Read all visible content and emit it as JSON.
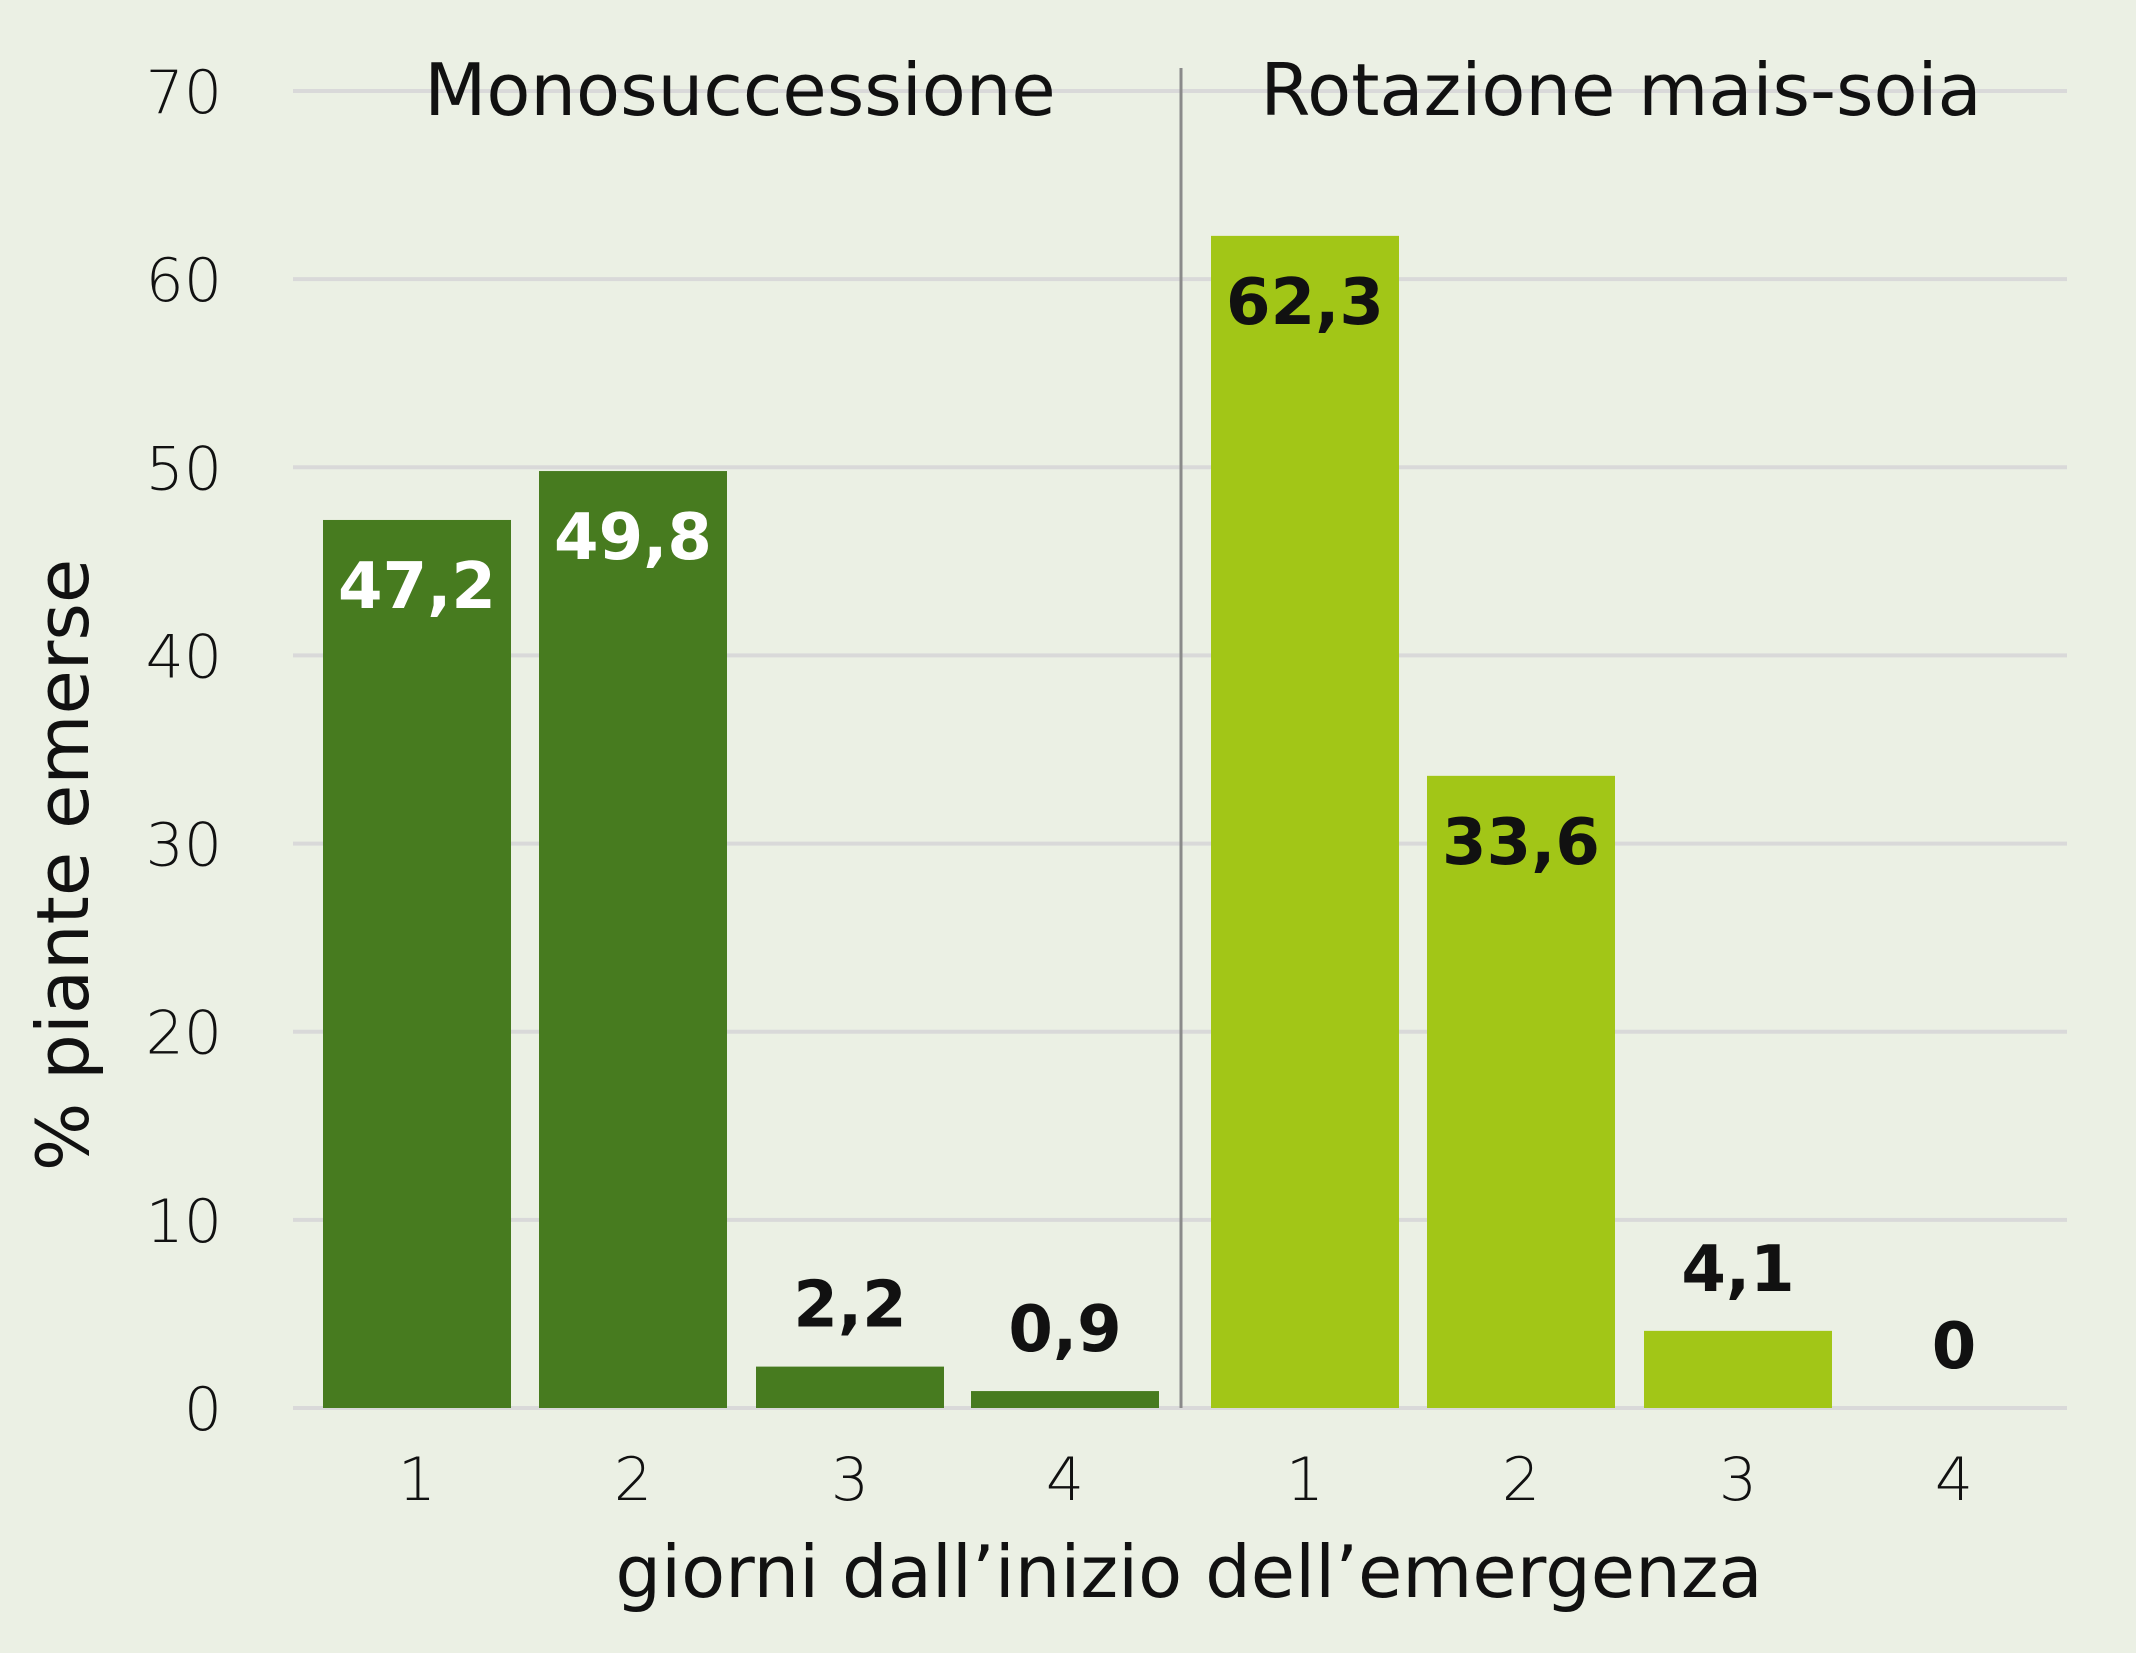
{
  "chart_data": {
    "type": "bar",
    "ylabel": "% piante emerse",
    "xlabel": "giorni dall’inizio dell’emergenza",
    "ylim": [
      0,
      70
    ],
    "yticks": [
      0,
      10,
      20,
      30,
      40,
      50,
      60,
      70
    ],
    "grid": true,
    "groups": [
      {
        "name": "Monosuccessione",
        "categories": [
          "1",
          "2",
          "3",
          "4"
        ],
        "values": [
          47.2,
          49.8,
          2.2,
          0.9
        ],
        "labels": [
          "47,2",
          "49,8",
          "2,2",
          "0,9"
        ],
        "color": "#477b1f"
      },
      {
        "name": "Rotazione mais-soia",
        "categories": [
          "1",
          "2",
          "3",
          "4"
        ],
        "values": [
          62.3,
          33.6,
          4.1,
          0
        ],
        "labels": [
          "62,3",
          "33,6",
          "4,1",
          "0"
        ],
        "color": "#a2c617"
      }
    ]
  }
}
